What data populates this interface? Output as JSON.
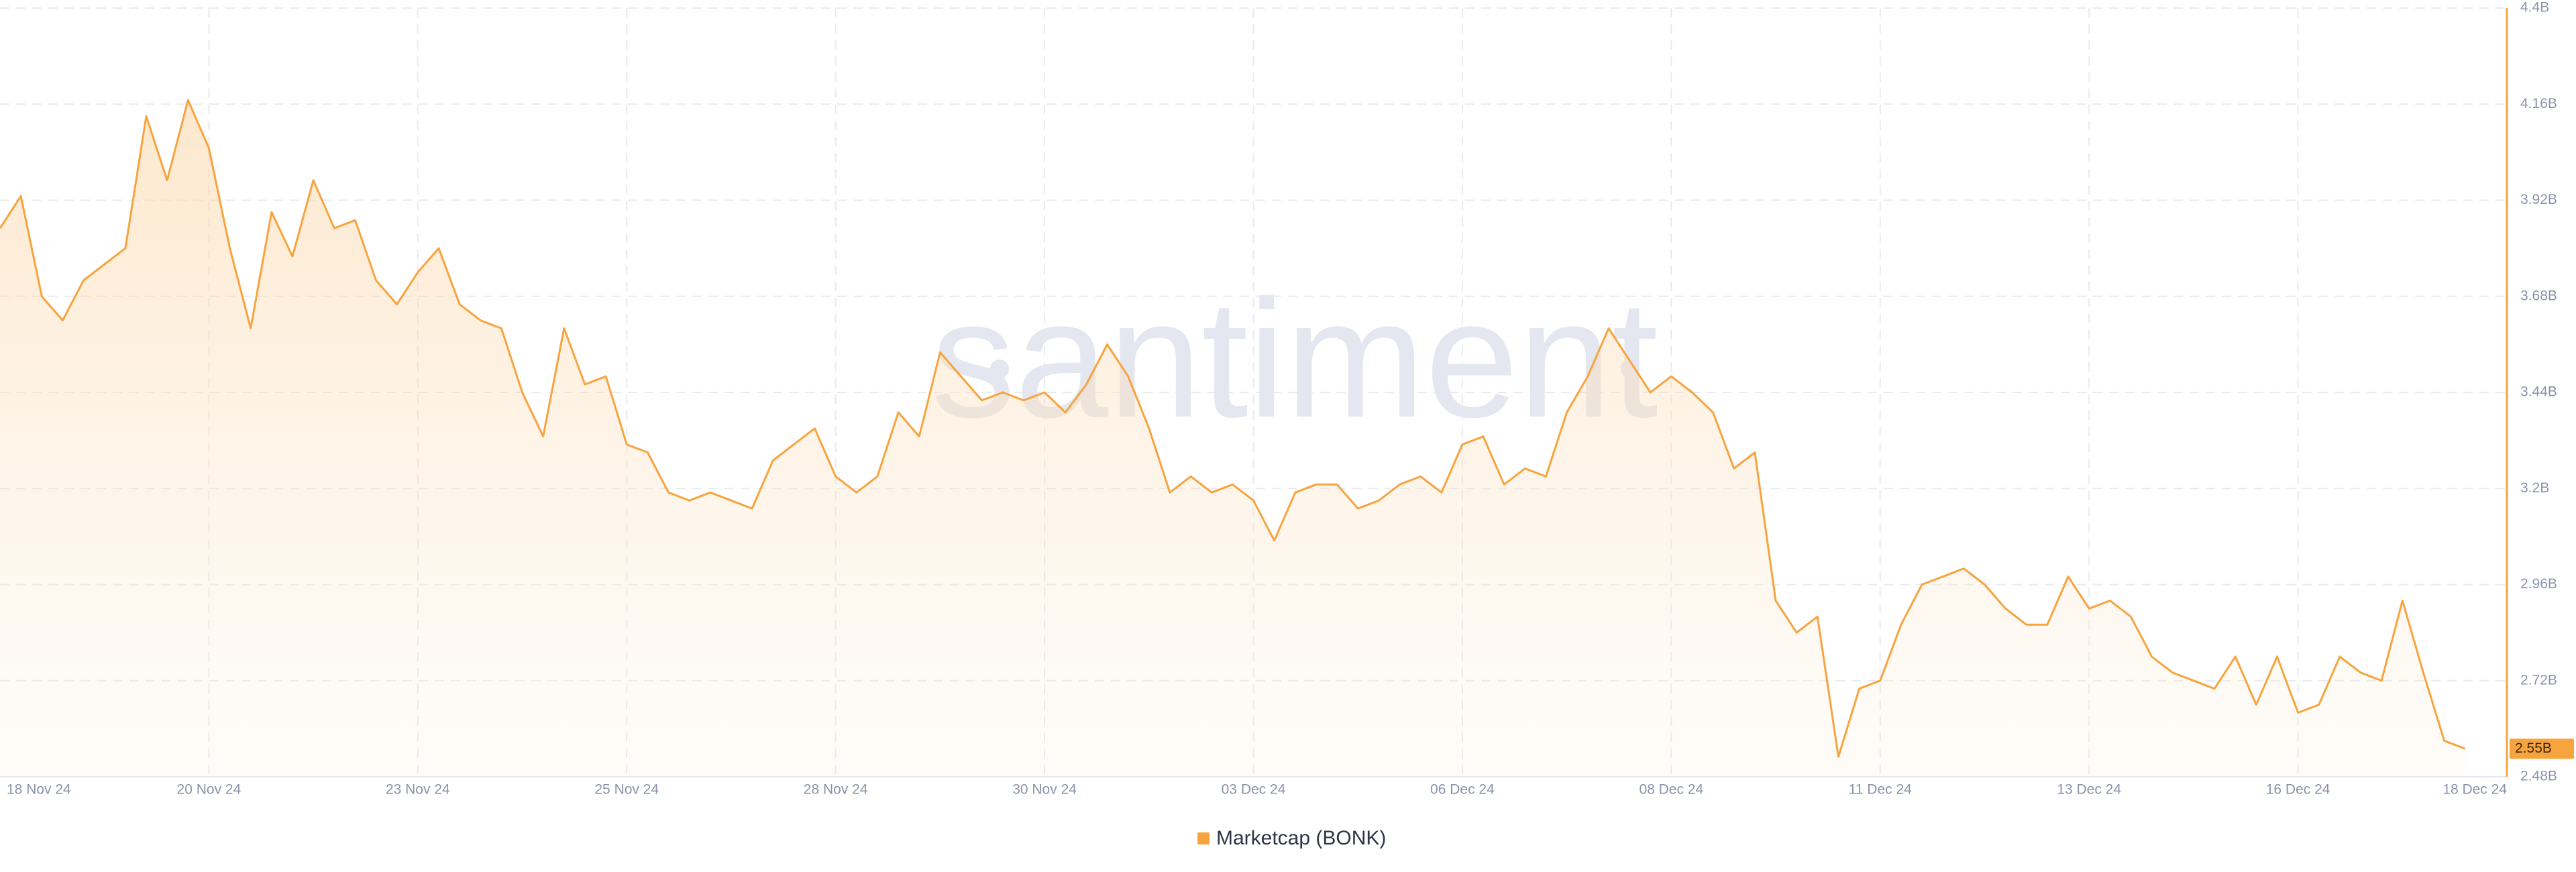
{
  "chart_data": {
    "type": "area-line",
    "watermark": "santiment",
    "categories": [
      "18 Nov 24",
      null,
      null,
      null,
      null,
      null,
      null,
      null,
      null,
      null,
      "20 Nov 24",
      null,
      null,
      null,
      null,
      null,
      null,
      null,
      null,
      null,
      "23 Nov 24",
      null,
      null,
      null,
      null,
      null,
      null,
      null,
      null,
      null,
      "25 Nov 24",
      null,
      null,
      null,
      null,
      null,
      null,
      null,
      null,
      null,
      "28 Nov 24",
      null,
      null,
      null,
      null,
      null,
      null,
      null,
      null,
      null,
      "30 Nov 24",
      null,
      null,
      null,
      null,
      null,
      null,
      null,
      null,
      null,
      "03 Dec 24",
      null,
      null,
      null,
      null,
      null,
      null,
      null,
      null,
      null,
      "06 Dec 24",
      null,
      null,
      null,
      null,
      null,
      null,
      null,
      null,
      null,
      "08 Dec 24",
      null,
      null,
      null,
      null,
      null,
      null,
      null,
      null,
      null,
      "11 Dec 24",
      null,
      null,
      null,
      null,
      null,
      null,
      null,
      null,
      null,
      "13 Dec 24",
      null,
      null,
      null,
      null,
      null,
      null,
      null,
      null,
      null,
      "16 Dec 24",
      null,
      null,
      null,
      null,
      null,
      null,
      null,
      null,
      null,
      "18 Dec 24"
    ],
    "series": [
      {
        "name": "Marketcap (BONK)",
        "color": "#f7a43e",
        "values": [
          3.85,
          3.93,
          3.68,
          3.62,
          3.72,
          3.76,
          3.8,
          4.13,
          3.97,
          4.17,
          4.05,
          3.8,
          3.6,
          3.89,
          3.78,
          3.97,
          3.85,
          3.87,
          3.72,
          3.66,
          3.74,
          3.8,
          3.66,
          3.62,
          3.6,
          3.44,
          3.33,
          3.6,
          3.46,
          3.48,
          3.31,
          3.29,
          3.19,
          3.17,
          3.19,
          3.17,
          3.15,
          3.27,
          3.31,
          3.35,
          3.23,
          3.19,
          3.23,
          3.39,
          3.33,
          3.54,
          3.48,
          3.42,
          3.44,
          3.42,
          3.44,
          3.39,
          3.46,
          3.56,
          3.48,
          3.35,
          3.19,
          3.23,
          3.19,
          3.21,
          3.17,
          3.07,
          3.19,
          3.21,
          3.21,
          3.15,
          3.17,
          3.21,
          3.23,
          3.19,
          3.31,
          3.33,
          3.21,
          3.25,
          3.23,
          3.39,
          3.48,
          3.6,
          3.52,
          3.44,
          3.48,
          3.44,
          3.39,
          3.25,
          3.29,
          2.92,
          2.84,
          2.88,
          2.53,
          2.7,
          2.72,
          2.86,
          2.96,
          2.98,
          3.0,
          2.96,
          2.9,
          2.86,
          2.86,
          2.98,
          2.9,
          2.92,
          2.88,
          2.78,
          2.74,
          2.72,
          2.7,
          2.78,
          2.66,
          2.78,
          2.64,
          2.66,
          2.78,
          2.74,
          2.72,
          2.92,
          2.74,
          2.57,
          2.55,
          null,
          null
        ],
        "value_labels": [
          null,
          null,
          null,
          null,
          null,
          null,
          null,
          null,
          null,
          null,
          null,
          null,
          null,
          null,
          null,
          null,
          null,
          null,
          null,
          null,
          null,
          null,
          null,
          null,
          null,
          null,
          null,
          null,
          null,
          null,
          null,
          null,
          null,
          null,
          null,
          null,
          null,
          null,
          null,
          null,
          null,
          null,
          null,
          null,
          null,
          null,
          null,
          null,
          null,
          null,
          null,
          null,
          null,
          null,
          null,
          null,
          null,
          null,
          null,
          null,
          null,
          null,
          null,
          null,
          null,
          null,
          null,
          null,
          null,
          null,
          null,
          null,
          null,
          null,
          null,
          null,
          null,
          null,
          null,
          null,
          null,
          null,
          null,
          null,
          null,
          null,
          null,
          null,
          null,
          null,
          null,
          null,
          null,
          null,
          null,
          null,
          null,
          null,
          null,
          null,
          null,
          null,
          null,
          null,
          null,
          null,
          null,
          null,
          null,
          null,
          null,
          null,
          null,
          null,
          null,
          null,
          null,
          null,
          "2.55B",
          null,
          null
        ]
      }
    ],
    "ylim": [
      2.48,
      4.4
    ],
    "yticks": [
      {
        "value": 2.48,
        "label": "2.48B"
      },
      {
        "value": 2.72,
        "label": "2.72B"
      },
      {
        "value": 2.96,
        "label": "2.96B"
      },
      {
        "value": 3.2,
        "label": "3.2B"
      },
      {
        "value": 3.44,
        "label": "3.44B"
      },
      {
        "value": 3.68,
        "label": "3.68B"
      },
      {
        "value": 3.92,
        "label": "3.92B"
      },
      {
        "value": 4.16,
        "label": "4.16B"
      },
      {
        "value": 4.4,
        "label": "4.4B"
      }
    ],
    "grid": true
  }
}
